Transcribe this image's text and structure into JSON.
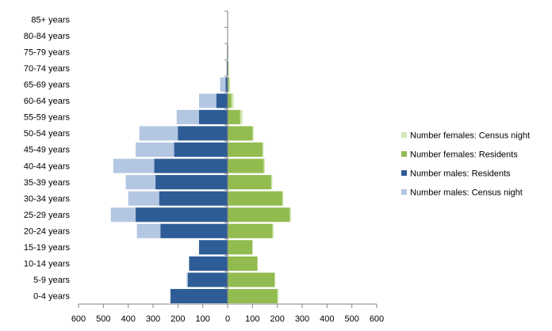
{
  "chart_data": {
    "type": "bar",
    "orientation": "horizontal",
    "chart_style": "population-pyramid",
    "categories": [
      "0-4 years",
      "5-9 years",
      "10-14 years",
      "15-19 years",
      "20-24 years",
      "25-29 years",
      "30-34 years",
      "35-39 years",
      "40-44 years",
      "45-49 years",
      "50-54 years",
      "55-59 years",
      "60-64 years",
      "65-69 years",
      "70-74 years",
      "75-79 years",
      "80-84 years",
      "85+ years"
    ],
    "series": [
      {
        "name": "Number males: Census night",
        "side": "left",
        "color": "#b3c6e2",
        "values": [
          230,
          165,
          155,
          115,
          365,
          470,
          400,
          410,
          460,
          370,
          355,
          205,
          115,
          30,
          5,
          3,
          2,
          2
        ]
      },
      {
        "name": "Number males: Residents",
        "side": "left",
        "color": "#2e5c96",
        "values": [
          230,
          160,
          155,
          115,
          270,
          370,
          275,
          290,
          295,
          215,
          200,
          115,
          45,
          8,
          3,
          2,
          1,
          1
        ]
      },
      {
        "name": "Number females: Census night",
        "side": "right",
        "color": "#d2e8b4",
        "values": [
          205,
          190,
          120,
          100,
          185,
          255,
          225,
          180,
          150,
          145,
          105,
          60,
          25,
          10,
          5,
          3,
          2,
          2
        ]
      },
      {
        "name": "Number females: Residents",
        "side": "right",
        "color": "#92bc50",
        "values": [
          200,
          190,
          120,
          100,
          180,
          250,
          220,
          175,
          145,
          140,
          100,
          50,
          15,
          5,
          3,
          2,
          1,
          1
        ]
      }
    ],
    "x_ticks": [
      "600",
      "500",
      "400",
      "300",
      "200",
      "100",
      "0",
      "100",
      "200",
      "300",
      "400",
      "500",
      "600"
    ],
    "xlim": [
      -600,
      600
    ],
    "legend": {
      "position": "right",
      "entries": [
        {
          "label": "Number females: Census night",
          "color": "#d2e8b4"
        },
        {
          "label": "Number females: Residents",
          "color": "#92bc50"
        },
        {
          "label": "Number males: Residents",
          "color": "#2e5c96"
        },
        {
          "label": "Number males: Census night",
          "color": "#b3c6e2"
        }
      ]
    },
    "grid": false,
    "title": "",
    "xlabel": "",
    "ylabel": ""
  }
}
